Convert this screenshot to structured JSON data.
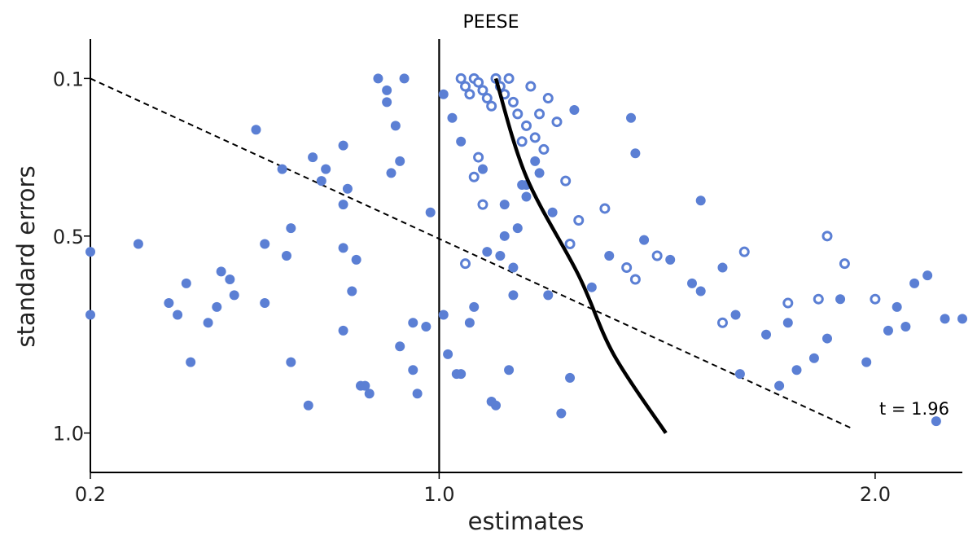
{
  "chart_data": {
    "type": "scatter",
    "title": "PEESE",
    "xlabel": "estimates",
    "ylabel": "standard errors",
    "xlim": [
      0.2,
      2.2
    ],
    "ylim": [
      0.0,
      1.1
    ],
    "y_inverted": true,
    "xticks": [
      0.2,
      1.0,
      2.0
    ],
    "xtick_labels": [
      "0.2",
      "1.0",
      "2.0"
    ],
    "yticks": [
      0.1,
      0.5,
      1.0
    ],
    "ytick_labels": [
      "0.1",
      "0.5",
      "1.0"
    ],
    "grid": false,
    "color": "#5b7fd4",
    "reference_line_x": 1.0,
    "annotation": "t = 1.96",
    "significance_line": [
      [
        0.2,
        0.1
      ],
      [
        1.95,
        0.99
      ]
    ],
    "peese_curve": [
      [
        1.13,
        0.1
      ],
      [
        1.2,
        0.35
      ],
      [
        1.32,
        0.6
      ],
      [
        1.4,
        0.8
      ],
      [
        1.52,
        1.0
      ]
    ],
    "series": [
      {
        "marker": "filled",
        "points": [
          [
            0.2,
            0.54
          ],
          [
            0.2,
            0.7
          ],
          [
            0.31,
            0.52
          ],
          [
            0.38,
            0.67
          ],
          [
            0.4,
            0.7
          ],
          [
            0.42,
            0.62
          ],
          [
            0.43,
            0.82
          ],
          [
            0.5,
            0.59
          ],
          [
            0.52,
            0.61
          ],
          [
            0.53,
            0.65
          ],
          [
            0.47,
            0.72
          ],
          [
            0.49,
            0.68
          ],
          [
            0.58,
            0.23
          ],
          [
            0.6,
            0.52
          ],
          [
            0.6,
            0.67
          ],
          [
            0.64,
            0.33
          ],
          [
            0.65,
            0.55
          ],
          [
            0.66,
            0.48
          ],
          [
            0.66,
            0.82
          ],
          [
            0.7,
            0.93
          ],
          [
            0.71,
            0.3
          ],
          [
            0.73,
            0.36
          ],
          [
            0.74,
            0.33
          ],
          [
            0.78,
            0.74
          ],
          [
            0.78,
            0.53
          ],
          [
            0.78,
            0.42
          ],
          [
            0.78,
            0.27
          ],
          [
            0.79,
            0.38
          ],
          [
            0.8,
            0.64
          ],
          [
            0.81,
            0.56
          ],
          [
            0.82,
            0.88
          ],
          [
            0.83,
            0.88
          ],
          [
            0.84,
            0.9
          ],
          [
            0.86,
            0.1
          ],
          [
            0.88,
            0.16
          ],
          [
            0.88,
            0.13
          ],
          [
            0.89,
            0.34
          ],
          [
            0.9,
            0.22
          ],
          [
            0.91,
            0.31
          ],
          [
            0.91,
            0.78
          ],
          [
            0.92,
            0.1
          ],
          [
            0.94,
            0.72
          ],
          [
            0.94,
            0.84
          ],
          [
            0.95,
            0.9
          ],
          [
            0.97,
            0.73
          ],
          [
            1.04,
            0.85
          ],
          [
            1.08,
            0.68
          ],
          [
            1.12,
            0.92
          ],
          [
            1.13,
            0.93
          ],
          [
            1.16,
            0.84
          ],
          [
            1.17,
            0.65
          ],
          [
            1.25,
            0.65
          ],
          [
            1.2,
            0.37
          ],
          [
            1.18,
            0.48
          ],
          [
            1.17,
            0.58
          ],
          [
            1.15,
            0.5
          ],
          [
            1.14,
            0.55
          ],
          [
            1.11,
            0.54
          ],
          [
            1.07,
            0.72
          ],
          [
            1.05,
            0.85
          ],
          [
            1.02,
            0.8
          ],
          [
            1.01,
            0.7
          ],
          [
            0.98,
            0.44
          ],
          [
            1.01,
            0.14
          ],
          [
            1.03,
            0.2
          ],
          [
            1.05,
            0.26
          ],
          [
            1.1,
            0.33
          ],
          [
            1.15,
            0.42
          ],
          [
            1.19,
            0.37
          ],
          [
            1.22,
            0.31
          ],
          [
            1.28,
            0.95
          ],
          [
            1.3,
            0.86
          ],
          [
            1.35,
            0.63
          ],
          [
            1.39,
            0.55
          ],
          [
            1.45,
            0.29
          ],
          [
            1.47,
            0.51
          ],
          [
            1.53,
            0.56
          ],
          [
            1.58,
            0.62
          ],
          [
            1.6,
            0.41
          ],
          [
            1.6,
            0.64
          ],
          [
            1.65,
            0.58
          ],
          [
            1.68,
            0.7
          ],
          [
            1.69,
            0.85
          ],
          [
            1.75,
            0.75
          ],
          [
            1.78,
            0.88
          ],
          [
            1.8,
            0.72
          ],
          [
            1.82,
            0.84
          ],
          [
            1.86,
            0.81
          ],
          [
            1.89,
            0.76
          ],
          [
            1.92,
            0.66
          ],
          [
            1.98,
            0.82
          ],
          [
            2.03,
            0.74
          ],
          [
            2.05,
            0.68
          ],
          [
            2.07,
            0.73
          ],
          [
            2.09,
            0.62
          ],
          [
            2.12,
            0.6
          ],
          [
            2.14,
            0.97
          ],
          [
            2.16,
            0.71
          ],
          [
            2.2,
            0.71
          ],
          [
            1.44,
            0.2
          ],
          [
            1.31,
            0.18
          ],
          [
            1.26,
            0.44
          ],
          [
            1.23,
            0.34
          ],
          [
            1.2,
            0.4
          ]
        ]
      },
      {
        "marker": "hollow",
        "points": [
          [
            1.05,
            0.1
          ],
          [
            1.06,
            0.12
          ],
          [
            1.07,
            0.14
          ],
          [
            1.08,
            0.1
          ],
          [
            1.09,
            0.11
          ],
          [
            1.1,
            0.13
          ],
          [
            1.11,
            0.15
          ],
          [
            1.12,
            0.17
          ],
          [
            1.13,
            0.1
          ],
          [
            1.14,
            0.12
          ],
          [
            1.15,
            0.14
          ],
          [
            1.16,
            0.1
          ],
          [
            1.17,
            0.16
          ],
          [
            1.18,
            0.19
          ],
          [
            1.2,
            0.22
          ],
          [
            1.22,
            0.25
          ],
          [
            1.24,
            0.28
          ],
          [
            1.25,
            0.15
          ],
          [
            1.27,
            0.21
          ],
          [
            1.29,
            0.36
          ],
          [
            1.3,
            0.52
          ],
          [
            1.32,
            0.46
          ],
          [
            1.38,
            0.43
          ],
          [
            1.43,
            0.58
          ],
          [
            1.45,
            0.61
          ],
          [
            1.5,
            0.55
          ],
          [
            1.65,
            0.72
          ],
          [
            1.7,
            0.54
          ],
          [
            1.8,
            0.67
          ],
          [
            1.87,
            0.66
          ],
          [
            1.89,
            0.5
          ],
          [
            1.93,
            0.57
          ],
          [
            2.0,
            0.66
          ],
          [
            1.06,
            0.57
          ],
          [
            1.1,
            0.42
          ],
          [
            1.08,
            0.35
          ],
          [
            1.09,
            0.3
          ],
          [
            1.19,
            0.26
          ],
          [
            1.21,
            0.12
          ],
          [
            1.23,
            0.19
          ]
        ]
      }
    ]
  }
}
